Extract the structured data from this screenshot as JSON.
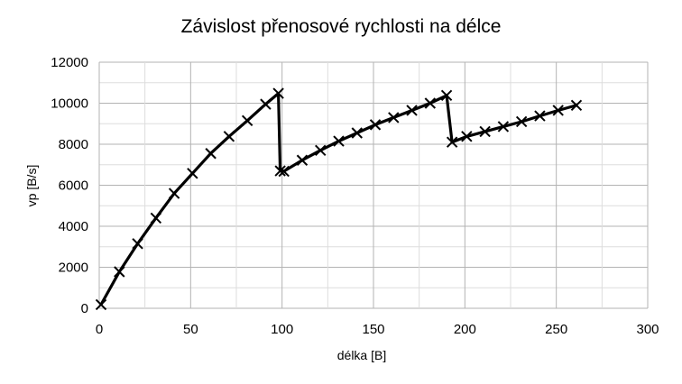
{
  "chart_data": {
    "type": "line",
    "title": "Závislost přenosové rychlosti na délce",
    "xlabel": "délka [B]",
    "ylabel": "vp [B/s]",
    "xlim": [
      0,
      300
    ],
    "ylim": [
      0,
      12000
    ],
    "xticks": [
      0,
      50,
      100,
      150,
      200,
      250,
      300
    ],
    "yticks": [
      0,
      2000,
      4000,
      6000,
      8000,
      10000,
      12000
    ],
    "grid": true,
    "legend": "none",
    "series": [
      {
        "color": "#000000",
        "marker": "x",
        "points": [
          [
            1,
            180
          ],
          [
            11,
            1780
          ],
          [
            21,
            3150
          ],
          [
            31,
            4400
          ],
          [
            41,
            5600
          ],
          [
            51,
            6580
          ],
          [
            61,
            7550
          ],
          [
            71,
            8380
          ],
          [
            81,
            9150
          ],
          [
            91,
            9950
          ],
          [
            98,
            10480
          ],
          [
            99,
            6700
          ],
          [
            101,
            6680
          ],
          [
            111,
            7220
          ],
          [
            121,
            7700
          ],
          [
            131,
            8150
          ],
          [
            141,
            8550
          ],
          [
            151,
            8950
          ],
          [
            161,
            9300
          ],
          [
            171,
            9650
          ],
          [
            181,
            10000
          ],
          [
            190,
            10380
          ],
          [
            193,
            8100
          ],
          [
            201,
            8380
          ],
          [
            211,
            8620
          ],
          [
            221,
            8860
          ],
          [
            231,
            9100
          ],
          [
            241,
            9380
          ],
          [
            251,
            9650
          ],
          [
            261,
            9900
          ]
        ]
      }
    ]
  }
}
